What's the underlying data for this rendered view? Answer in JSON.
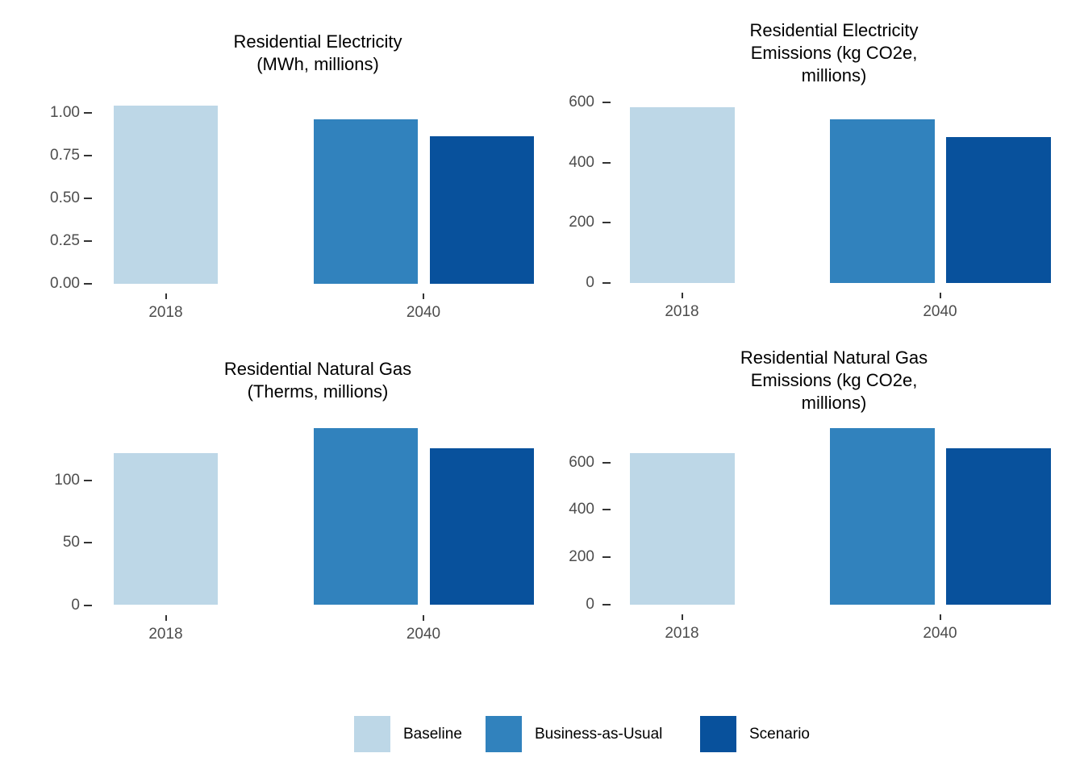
{
  "figure": {
    "background": "#ffffff"
  },
  "palette": {
    "baseline": "#BDD7E7",
    "business_as_usual": "#3182BD",
    "scenario": "#08519C",
    "title_text": "#000000",
    "axis_text": "#4D4D4D",
    "tick_mark": "#333333"
  },
  "legend": {
    "position": "bottom",
    "items": [
      {
        "label": "Baseline",
        "color": "#BDD7E7"
      },
      {
        "label": "Business-as-Usual",
        "color": "#3182BD"
      },
      {
        "label": "Scenario",
        "color": "#08519C"
      }
    ]
  },
  "chart_data": [
    {
      "id": "residential-electricity",
      "type": "bar",
      "title": "Residential Electricity (MWh, millions)",
      "title_lines": [
        "Residential Electricity",
        "(MWh, millions)"
      ],
      "categories": [
        "2018",
        "2040"
      ],
      "series": [
        {
          "name": "Baseline",
          "color_key": "baseline",
          "values": [
            1.04,
            null
          ]
        },
        {
          "name": "Business-as-Usual",
          "color_key": "business_as_usual",
          "values": [
            null,
            0.96
          ]
        },
        {
          "name": "Scenario",
          "color_key": "scenario",
          "values": [
            null,
            0.86
          ]
        }
      ],
      "yticks": [
        {
          "value": 0,
          "label": "0.00"
        },
        {
          "value": 0.25,
          "label": "0.25"
        },
        {
          "value": 0.5,
          "label": "0.50"
        },
        {
          "value": 0.75,
          "label": "0.75"
        },
        {
          "value": 1.0,
          "label": "1.00"
        }
      ],
      "ylim": [
        0,
        1.14
      ],
      "grid": false
    },
    {
      "id": "residential-electricity-emissions",
      "type": "bar",
      "title": "Residential Electricity Emissions (kg CO2e, millions)",
      "title_lines": [
        "Residential Electricity",
        "Emissions (kg CO2e,",
        "millions)"
      ],
      "categories": [
        "2018",
        "2040"
      ],
      "series": [
        {
          "name": "Baseline",
          "color_key": "baseline",
          "values": [
            585,
            null
          ]
        },
        {
          "name": "Business-as-Usual",
          "color_key": "business_as_usual",
          "values": [
            null,
            545
          ]
        },
        {
          "name": "Scenario",
          "color_key": "scenario",
          "values": [
            null,
            485
          ]
        }
      ],
      "yticks": [
        {
          "value": 0,
          "label": "0"
        },
        {
          "value": 200,
          "label": "200"
        },
        {
          "value": 400,
          "label": "400"
        },
        {
          "value": 600,
          "label": "600"
        }
      ],
      "ylim": [
        0,
        646
      ],
      "grid": false
    },
    {
      "id": "residential-natural-gas",
      "type": "bar",
      "title": "Residential Natural Gas (Therms, millions)",
      "title_lines": [
        "Residential Natural Gas",
        "(Therms, millions)"
      ],
      "categories": [
        "2018",
        "2040"
      ],
      "series": [
        {
          "name": "Baseline",
          "color_key": "baseline",
          "values": [
            122,
            null
          ]
        },
        {
          "name": "Business-as-Usual",
          "color_key": "business_as_usual",
          "values": [
            null,
            142
          ]
        },
        {
          "name": "Scenario",
          "color_key": "scenario",
          "values": [
            null,
            126
          ]
        }
      ],
      "yticks": [
        {
          "value": 0,
          "label": "0"
        },
        {
          "value": 50,
          "label": "50"
        },
        {
          "value": 100,
          "label": "100"
        }
      ],
      "ylim": [
        0,
        151
      ],
      "grid": false
    },
    {
      "id": "residential-natural-gas-emissions",
      "type": "bar",
      "title": "Residential Natural Gas Emissions (kg CO2e, millions)",
      "title_lines": [
        "Residential Natural Gas",
        "Emissions (kg CO2e,",
        "millions)"
      ],
      "categories": [
        "2018",
        "2040"
      ],
      "series": [
        {
          "name": "Baseline",
          "color_key": "baseline",
          "values": [
            640,
            null
          ]
        },
        {
          "name": "Business-as-Usual",
          "color_key": "business_as_usual",
          "values": [
            null,
            745
          ]
        },
        {
          "name": "Scenario",
          "color_key": "scenario",
          "values": [
            null,
            660
          ]
        }
      ],
      "yticks": [
        {
          "value": 0,
          "label": "0"
        },
        {
          "value": 200,
          "label": "200"
        },
        {
          "value": 400,
          "label": "400"
        },
        {
          "value": 600,
          "label": "600"
        }
      ],
      "ylim": [
        0,
        793
      ],
      "grid": false
    }
  ]
}
